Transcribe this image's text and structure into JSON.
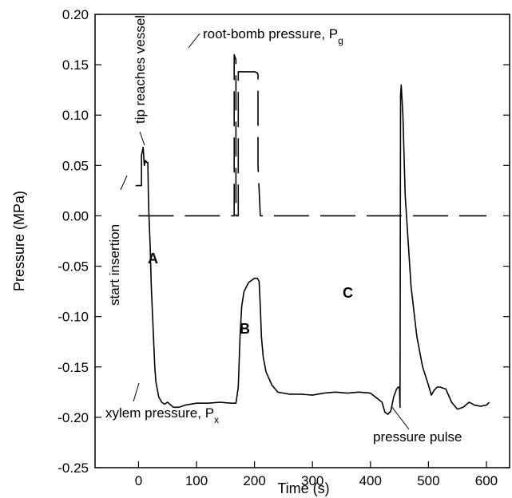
{
  "chart_data": {
    "type": "line",
    "xlabel": "Time (s)",
    "ylabel": "Pressure (MPa)",
    "xlim": [
      -75,
      640
    ],
    "ylim": [
      -0.25,
      0.2
    ],
    "xticks": [
      0,
      100,
      200,
      300,
      400,
      500,
      600
    ],
    "yticks": [
      -0.25,
      -0.2,
      -0.15,
      -0.1,
      -0.05,
      0.0,
      0.05,
      0.1,
      0.15,
      0.2
    ],
    "xtick_labels": [
      "0",
      "100",
      "200",
      "300",
      "400",
      "500",
      "600"
    ],
    "ytick_labels": [
      "-0.25",
      "-0.20",
      "-0.15",
      "-0.10",
      "-0.05",
      "0.00",
      "0.05",
      "0.10",
      "0.15",
      "0.20"
    ],
    "grid": false,
    "series": [
      {
        "style": "solid",
        "x": [
          -5,
          5,
          5,
          8,
          10,
          12,
          14,
          16,
          17,
          18,
          20,
          22,
          25,
          28,
          30,
          35,
          40,
          45,
          50,
          60,
          70,
          80,
          100,
          120,
          140,
          160,
          168,
          172,
          175,
          178,
          182,
          190,
          200,
          205,
          208,
          210,
          212,
          215,
          220,
          230,
          240,
          260,
          280,
          300,
          320,
          340,
          360,
          380,
          400,
          420,
          425,
          430,
          435,
          440,
          445,
          448,
          450,
          451,
          452,
          453,
          456,
          460,
          470,
          480,
          490,
          500,
          505,
          510,
          515,
          520,
          530,
          540,
          550,
          560,
          570,
          580,
          590,
          600,
          605
        ],
        "y": [
          0.03,
          0.03,
          0.06,
          0.068,
          0.05,
          0.055,
          0.053,
          0.053,
          0.02,
          0.0,
          -0.03,
          -0.07,
          -0.11,
          -0.15,
          -0.165,
          -0.18,
          -0.185,
          -0.187,
          -0.185,
          -0.19,
          -0.19,
          -0.188,
          -0.186,
          -0.186,
          -0.185,
          -0.186,
          -0.186,
          -0.17,
          -0.12,
          -0.09,
          -0.075,
          -0.066,
          -0.062,
          -0.062,
          -0.065,
          -0.09,
          -0.12,
          -0.14,
          -0.155,
          -0.168,
          -0.175,
          -0.177,
          -0.177,
          -0.178,
          -0.176,
          -0.175,
          -0.176,
          -0.175,
          -0.176,
          -0.185,
          -0.195,
          -0.197,
          -0.194,
          -0.18,
          -0.172,
          -0.17,
          -0.17,
          -0.19,
          0.12,
          0.13,
          0.1,
          0.02,
          -0.07,
          -0.12,
          -0.15,
          -0.168,
          -0.178,
          -0.173,
          -0.17,
          -0.17,
          -0.172,
          -0.185,
          -0.192,
          -0.19,
          -0.185,
          -0.188,
          -0.189,
          -0.188,
          -0.185
        ]
      },
      {
        "style": "dashed",
        "x": [
          0,
          165,
          165,
          168,
          168,
          172,
          172,
          186,
          186,
          200,
          205,
          206,
          206,
          210,
          212,
          600
        ],
        "y": [
          0.0,
          0.0,
          0.16,
          0.155,
          0.0,
          0.0,
          0.143,
          0.143,
          0.143,
          0.143,
          0.142,
          0.14,
          0.05,
          0.0,
          0.0,
          0.0
        ]
      }
    ],
    "annotations": [
      {
        "text": "start insertion"
      },
      {
        "text": "tip reaches vessel"
      },
      {
        "text": "root-bomb pressure, P",
        "sub": "g"
      },
      {
        "text": "xylem pressure, P",
        "sub": "x"
      },
      {
        "text": "pressure pulse"
      },
      {
        "text": "A"
      },
      {
        "text": "B"
      },
      {
        "text": "C"
      }
    ]
  }
}
